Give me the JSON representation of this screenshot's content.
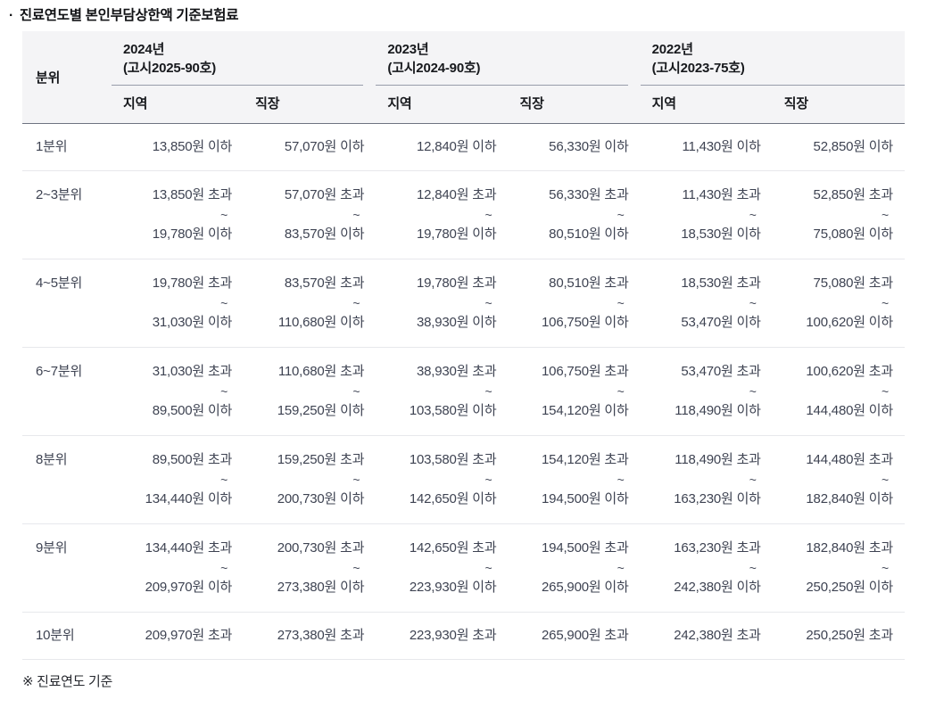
{
  "title_bullet": "·",
  "title": "진료연도별 본인부담상한액 기준보험료",
  "footnote": "※ 진료연도 기준",
  "table": {
    "rank_header": "분위",
    "tilde": "~",
    "year_groups": [
      {
        "year": "2024년",
        "notice": "(고시2025-90호)",
        "sub": [
          "지역",
          "직장"
        ]
      },
      {
        "year": "2023년",
        "notice": "(고시2024-90호)",
        "sub": [
          "지역",
          "직장"
        ]
      },
      {
        "year": "2022년",
        "notice": "(고시2023-75호)",
        "sub": [
          "지역",
          "직장"
        ]
      }
    ],
    "rows": [
      {
        "rank": "1분위",
        "cells": [
          [
            "13,850원 이하"
          ],
          [
            "57,070원 이하"
          ],
          [
            "12,840원 이하"
          ],
          [
            "56,330원 이하"
          ],
          [
            "11,430원 이하"
          ],
          [
            "52,850원 이하"
          ]
        ]
      },
      {
        "rank": "2~3분위",
        "cells": [
          [
            "13,850원 초과",
            "~",
            "19,780원 이하"
          ],
          [
            "57,070원 초과",
            "~",
            "83,570원 이하"
          ],
          [
            "12,840원 초과",
            "~",
            "19,780원 이하"
          ],
          [
            "56,330원 초과",
            "~",
            "80,510원 이하"
          ],
          [
            "11,430원 초과",
            "~",
            "18,530원 이하"
          ],
          [
            "52,850원 초과",
            "~",
            "75,080원 이하"
          ]
        ]
      },
      {
        "rank": "4~5분위",
        "cells": [
          [
            "19,780원 초과",
            "~",
            "31,030원 이하"
          ],
          [
            "83,570원 초과",
            "~",
            "110,680원 이하"
          ],
          [
            "19,780원 초과",
            "~",
            "38,930원 이하"
          ],
          [
            "80,510원 초과",
            "~",
            "106,750원 이하"
          ],
          [
            "18,530원 초과",
            "~",
            "53,470원 이하"
          ],
          [
            "75,080원 초과",
            "~",
            "100,620원 이하"
          ]
        ]
      },
      {
        "rank": "6~7분위",
        "cells": [
          [
            "31,030원 초과",
            "~",
            "89,500원 이하"
          ],
          [
            "110,680원 초과",
            "~",
            "159,250원 이하"
          ],
          [
            "38,930원 초과",
            "~",
            "103,580원 이하"
          ],
          [
            "106,750원 초과",
            "~",
            "154,120원 이하"
          ],
          [
            "53,470원 초과",
            "~",
            "118,490원 이하"
          ],
          [
            "100,620원 초과",
            "~",
            "144,480원 이하"
          ]
        ]
      },
      {
        "rank": "8분위",
        "cells": [
          [
            "89,500원 초과",
            "~",
            "134,440원 이하"
          ],
          [
            "159,250원 초과",
            "~",
            "200,730원 이하"
          ],
          [
            "103,580원 초과",
            "~",
            "142,650원 이하"
          ],
          [
            "154,120원 초과",
            "~",
            "194,500원 이하"
          ],
          [
            "118,490원 초과",
            "~",
            "163,230원 이하"
          ],
          [
            "144,480원 초과",
            "~",
            "182,840원 이하"
          ]
        ]
      },
      {
        "rank": "9분위",
        "cells": [
          [
            "134,440원 초과",
            "~",
            "209,970원 이하"
          ],
          [
            "200,730원 초과",
            "~",
            "273,380원 이하"
          ],
          [
            "142,650원 초과",
            "~",
            "223,930원 이하"
          ],
          [
            "194,500원 초과",
            "~",
            "265,900원 이하"
          ],
          [
            "163,230원 초과",
            "~",
            "242,380원 이하"
          ],
          [
            "182,840원 초과",
            "~",
            "250,250원 이하"
          ]
        ]
      },
      {
        "rank": "10분위",
        "cells": [
          [
            "209,970원 초과"
          ],
          [
            "273,380원 초과"
          ],
          [
            "223,930원 초과"
          ],
          [
            "265,900원 초과"
          ],
          [
            "242,380원 초과"
          ],
          [
            "250,250원 초과"
          ]
        ]
      }
    ]
  }
}
